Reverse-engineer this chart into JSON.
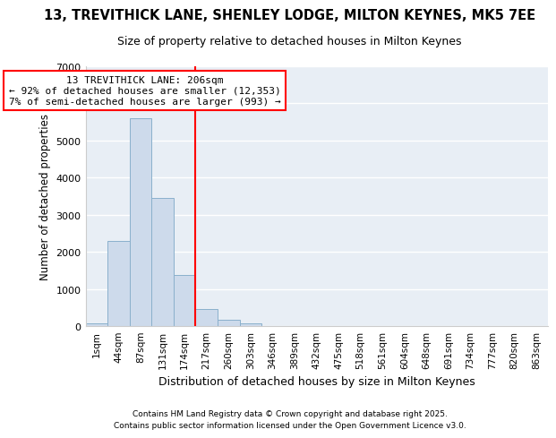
{
  "title": "13, TREVITHICK LANE, SHENLEY LODGE, MILTON KEYNES, MK5 7EE",
  "subtitle": "Size of property relative to detached houses in Milton Keynes",
  "xlabel": "Distribution of detached houses by size in Milton Keynes",
  "ylabel": "Number of detached properties",
  "categories": [
    "1sqm",
    "44sqm",
    "87sqm",
    "131sqm",
    "174sqm",
    "217sqm",
    "260sqm",
    "303sqm",
    "346sqm",
    "389sqm",
    "432sqm",
    "475sqm",
    "518sqm",
    "561sqm",
    "604sqm",
    "648sqm",
    "691sqm",
    "734sqm",
    "777sqm",
    "820sqm",
    "863sqm"
  ],
  "values": [
    80,
    2300,
    5600,
    3450,
    1380,
    470,
    175,
    75,
    10,
    0,
    0,
    0,
    0,
    0,
    0,
    0,
    0,
    0,
    0,
    0,
    0
  ],
  "bar_color": "#cddaeb",
  "bar_edge_color": "#8ab0cc",
  "vline_color": "red",
  "vline_position": 4.5,
  "annotation_line1": "13 TREVITHICK LANE: 206sqm",
  "annotation_line2": "← 92% of detached houses are smaller (12,353)",
  "annotation_line3": "7% of semi-detached houses are larger (993) →",
  "ylim": [
    0,
    7000
  ],
  "yticks": [
    0,
    1000,
    2000,
    3000,
    4000,
    5000,
    6000,
    7000
  ],
  "chart_bg": "#e8eef5",
  "grid_color": "white",
  "footer_line1": "Contains HM Land Registry data © Crown copyright and database right 2025.",
  "footer_line2": "Contains public sector information licensed under the Open Government Licence v3.0."
}
